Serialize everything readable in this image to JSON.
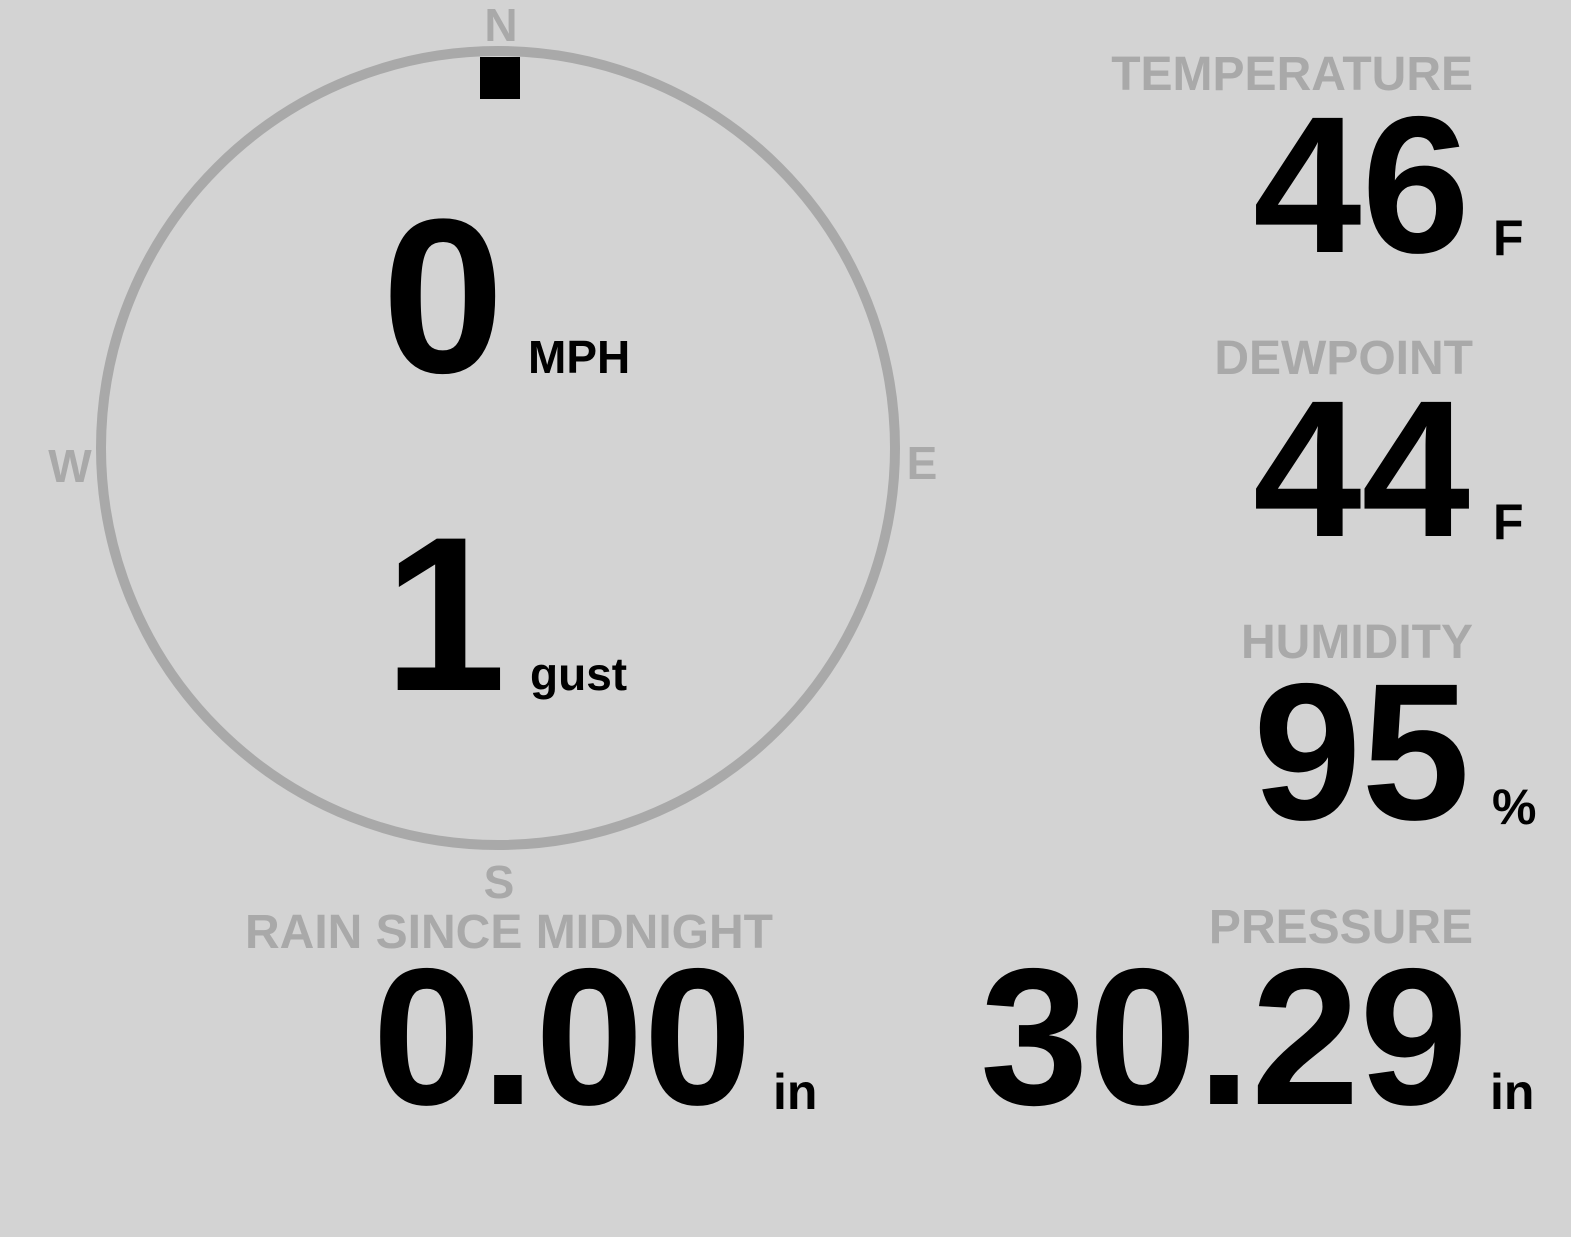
{
  "colors": {
    "background": "#d3d3d3",
    "label": "#a9a9a9",
    "value": "#000000",
    "compass_ring": "#a9a9a9",
    "direction_marker": "#000000"
  },
  "wind": {
    "cardinals": {
      "north": "N",
      "east": "E",
      "south": "S",
      "west": "W"
    },
    "direction_degrees": 0,
    "speed": "0",
    "speed_unit": "MPH",
    "gust": "1",
    "gust_unit": "gust"
  },
  "temperature": {
    "label": "TEMPERATURE",
    "value": "46",
    "unit": "F"
  },
  "dewpoint": {
    "label": "DEWPOINT",
    "value": "44",
    "unit": "F"
  },
  "humidity": {
    "label": "HUMIDITY",
    "value": "95",
    "unit": "%"
  },
  "pressure": {
    "label": "PRESSURE",
    "value": "30.29",
    "unit": "in"
  },
  "rain": {
    "label": "RAIN SINCE MIDNIGHT",
    "value": "0.00",
    "unit": "in"
  }
}
